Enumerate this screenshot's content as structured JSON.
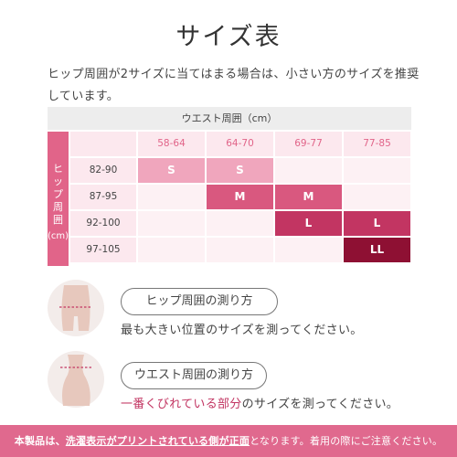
{
  "title": "サイズ表",
  "intro": "ヒップ周囲が2サイズに当てはまる場合は、小さい方のサイズを推奨しています。",
  "chart": {
    "waist_header": "ウエスト周囲（cm）",
    "hip_label_chars": [
      "ヒ",
      "ッ",
      "プ",
      "周",
      "囲"
    ],
    "hip_label_unit": "(cm)",
    "waist_columns": [
      "58-64",
      "64-70",
      "69-77",
      "77-85"
    ],
    "hip_rows": [
      "82-90",
      "87-95",
      "92-100",
      "97-105"
    ],
    "grid": [
      [
        "S",
        "S",
        "",
        ""
      ],
      [
        "",
        "M",
        "M",
        ""
      ],
      [
        "",
        "",
        "L",
        "L"
      ],
      [
        "",
        "",
        "",
        "LL"
      ]
    ]
  },
  "guides": {
    "hip": {
      "title": "ヒップ周囲の測り方",
      "desc": "最も大きい位置のサイズを測ってください。"
    },
    "waist": {
      "title": "ウエスト周囲の測り方",
      "desc_accent": "一番くびれている部分",
      "desc_rest": "のサイズを測ってください。"
    }
  },
  "footer": {
    "part1": "本製品は、",
    "part2": "洗濯表示がプリントされている側が正面",
    "part3": "となります。着用の際にご注意ください。"
  },
  "colors": {
    "pink_header": "#e16489",
    "size_s": "#f0a6bd",
    "size_m": "#d9587f",
    "size_l": "#c23562",
    "size_ll": "#8e1033",
    "footer": "#e0698e"
  }
}
